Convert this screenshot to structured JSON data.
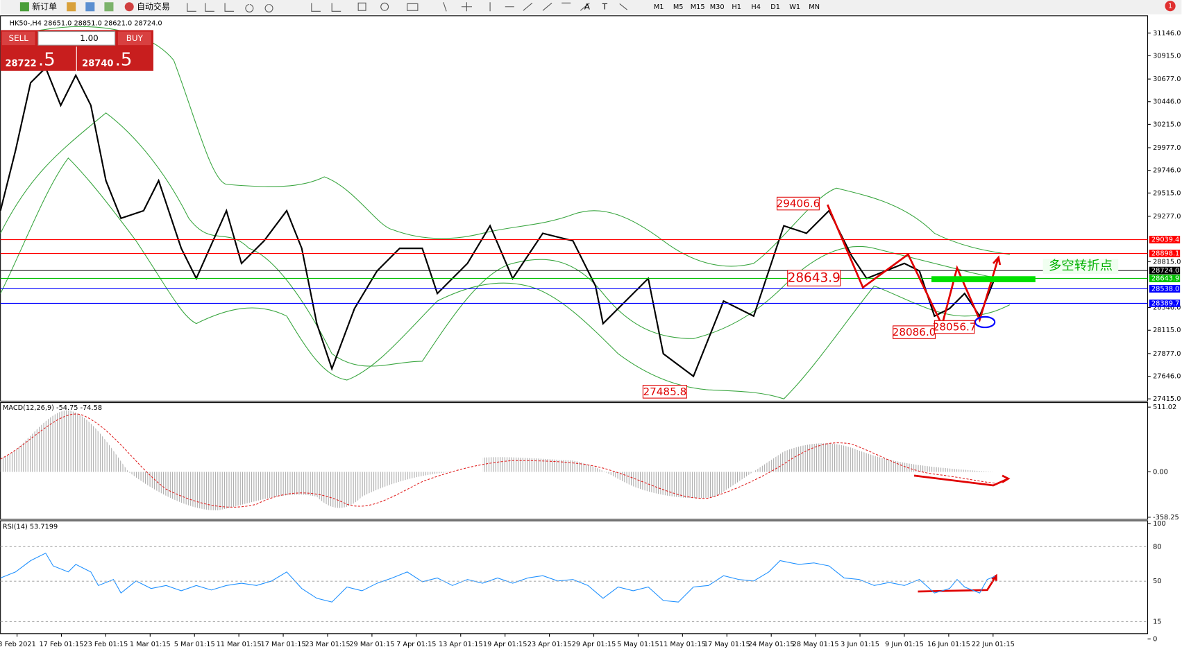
{
  "toolbar": {
    "new_order": "新订单",
    "auto_trade": "自动交易",
    "text_tool": "A",
    "label_tool": "T",
    "timeframes": [
      "M1",
      "M5",
      "M15",
      "M30",
      "H1",
      "H4",
      "D1",
      "W1",
      "MN"
    ],
    "alert_count": "1"
  },
  "chart": {
    "header": "HK50-,H4  28651.0 28851.0 28621.0 28724.0",
    "trade_panel": {
      "sell": "SELL",
      "buy": "BUY",
      "lot": "1.00",
      "sell_price": "28722",
      "sell_fraction": ".5",
      "buy_price": "28740",
      "buy_fraction": ".5"
    },
    "price_ticks": [
      {
        "value": 31146,
        "label": "31146.0"
      },
      {
        "value": 30915,
        "label": "30915.0"
      },
      {
        "value": 30677,
        "label": "30677.0"
      },
      {
        "value": 30446,
        "label": "30446.0"
      },
      {
        "value": 30215,
        "label": "30215.0"
      },
      {
        "value": 29977,
        "label": "29977.0"
      },
      {
        "value": 29746,
        "label": "29746.0"
      },
      {
        "value": 29515,
        "label": "29515.0"
      },
      {
        "value": 29277,
        "label": "29277.0"
      },
      {
        "value": 28815,
        "label": "28815.0"
      },
      {
        "value": 28346,
        "label": "28346.0"
      },
      {
        "value": 28115,
        "label": "28115.0"
      },
      {
        "value": 27877,
        "label": "27877.0"
      },
      {
        "value": 27646,
        "label": "27646.0"
      },
      {
        "value": 27415,
        "label": "27415.0"
      }
    ],
    "price_lines": [
      {
        "value": 29039.4,
        "label": "29039.4",
        "color": "#ff0000"
      },
      {
        "value": 28898.1,
        "label": "28898.1",
        "color": "#ff0000"
      },
      {
        "value": 28724.0,
        "label": "28724.0",
        "color": "#000000"
      },
      {
        "value": 28643.9,
        "label": "28643.9",
        "color": "#00c000"
      },
      {
        "value": 28538.0,
        "label": "28538.0",
        "color": "#0000ff"
      },
      {
        "value": 28389.7,
        "label": "28389.7",
        "color": "#0000ff"
      }
    ],
    "annotations": [
      "29406.6",
      "28643.9",
      "28086.0",
      "28056.7",
      "27485.8"
    ],
    "turning_point": "多空转折点"
  },
  "macd": {
    "label": "MACD(12,26,9) -54.75 -74.58",
    "ticks": [
      {
        "value": 511.02,
        "label": "511.02"
      },
      {
        "value": 0,
        "label": "0.00"
      },
      {
        "value": -358.25,
        "label": "-358.25"
      }
    ]
  },
  "rsi": {
    "label": "RSI(14) 53.7199",
    "ticks": [
      100,
      80,
      50,
      15,
      0
    ]
  },
  "time_axis": [
    "3 Feb 2021",
    "17 Feb 01:15",
    "23 Feb 01:15",
    "1 Mar 01:15",
    "5 Mar 01:15",
    "11 Mar 01:15",
    "17 Mar 01:15",
    "23 Mar 01:15",
    "29 Mar 01:15",
    "7 Apr 01:15",
    "13 Apr 01:15",
    "19 Apr 01:15",
    "23 Apr 01:15",
    "29 Apr 01:15",
    "5 May 01:15",
    "11 May 01:15",
    "17 May 01:15",
    "24 May 01:15",
    "28 May 01:15",
    "3 Jun 01:15",
    "9 Jun 01:15",
    "16 Jun 01:15",
    "22 Jun 01:15"
  ]
}
